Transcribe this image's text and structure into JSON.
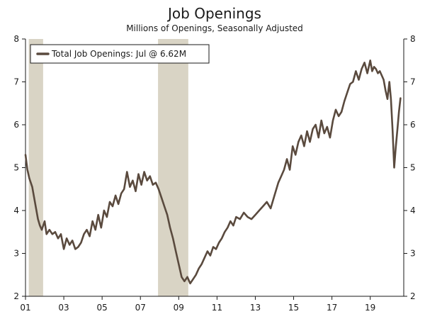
{
  "chart_data": {
    "type": "line",
    "title": "Job Openings",
    "subtitle": "Millions of Openings, Seasonally Adjusted",
    "xlabel": "",
    "ylabel": "",
    "xlim": [
      2001.0,
      2020.75
    ],
    "ylim": [
      2,
      8
    ],
    "y_ticks": [
      2,
      3,
      4,
      5,
      6,
      7,
      8
    ],
    "x_ticks": [
      {
        "year": 2001,
        "label": "01"
      },
      {
        "year": 2003,
        "label": "03"
      },
      {
        "year": 2005,
        "label": "05"
      },
      {
        "year": 2007,
        "label": "07"
      },
      {
        "year": 2009,
        "label": "09"
      },
      {
        "year": 2011,
        "label": "11"
      },
      {
        "year": 2013,
        "label": "13"
      },
      {
        "year": 2015,
        "label": "15"
      },
      {
        "year": 2017,
        "label": "17"
      },
      {
        "year": 2019,
        "label": "19"
      }
    ],
    "grid": false,
    "legend": {
      "position": "top-left",
      "label": "Total Job Openings: Jul @ 6.62M"
    },
    "recessions": [
      {
        "start": 2001.17,
        "end": 2001.92
      },
      {
        "start": 2007.92,
        "end": 2009.5
      }
    ],
    "series": [
      {
        "name": "Total Job Openings: Jul @ 6.62M",
        "x": [
          2001.0,
          2001.1,
          2001.2,
          2001.35,
          2001.45,
          2001.55,
          2001.65,
          2001.75,
          2001.85,
          2002.0,
          2002.1,
          2002.25,
          2002.4,
          2002.55,
          2002.7,
          2002.85,
          2003.0,
          2003.15,
          2003.3,
          2003.45,
          2003.6,
          2003.75,
          2003.9,
          2004.05,
          2004.2,
          2004.35,
          2004.5,
          2004.65,
          2004.8,
          2004.95,
          2005.1,
          2005.25,
          2005.4,
          2005.55,
          2005.7,
          2005.85,
          2006.0,
          2006.15,
          2006.3,
          2006.45,
          2006.6,
          2006.75,
          2006.9,
          2007.05,
          2007.2,
          2007.35,
          2007.5,
          2007.65,
          2007.8,
          2007.95,
          2008.1,
          2008.25,
          2008.4,
          2008.55,
          2008.7,
          2008.85,
          2009.0,
          2009.15,
          2009.3,
          2009.45,
          2009.6,
          2009.75,
          2009.9,
          2010.05,
          2010.2,
          2010.35,
          2010.5,
          2010.65,
          2010.8,
          2010.95,
          2011.1,
          2011.25,
          2011.4,
          2011.55,
          2011.7,
          2011.85,
          2012.0,
          2012.2,
          2012.4,
          2012.6,
          2012.8,
          2013.0,
          2013.2,
          2013.4,
          2013.6,
          2013.8,
          2014.0,
          2014.2,
          2014.35,
          2014.5,
          2014.65,
          2014.8,
          2014.95,
          2015.1,
          2015.25,
          2015.4,
          2015.55,
          2015.7,
          2015.85,
          2016.0,
          2016.15,
          2016.3,
          2016.45,
          2016.6,
          2016.75,
          2016.9,
          2017.05,
          2017.2,
          2017.35,
          2017.5,
          2017.65,
          2017.8,
          2017.95,
          2018.1,
          2018.25,
          2018.4,
          2018.55,
          2018.7,
          2018.85,
          2019.0,
          2019.1,
          2019.2,
          2019.3,
          2019.4,
          2019.5,
          2019.6,
          2019.7,
          2019.8,
          2019.9,
          2020.0,
          2020.08,
          2020.17,
          2020.25,
          2020.33,
          2020.42,
          2020.5,
          2020.58
        ],
        "values": [
          5.3,
          4.95,
          4.75,
          4.55,
          4.3,
          4.05,
          3.8,
          3.65,
          3.55,
          3.75,
          3.45,
          3.55,
          3.45,
          3.5,
          3.35,
          3.45,
          3.1,
          3.35,
          3.2,
          3.3,
          3.1,
          3.15,
          3.25,
          3.45,
          3.55,
          3.4,
          3.75,
          3.55,
          3.9,
          3.6,
          4.0,
          3.85,
          4.2,
          4.1,
          4.35,
          4.15,
          4.4,
          4.5,
          4.9,
          4.55,
          4.7,
          4.45,
          4.85,
          4.6,
          4.9,
          4.7,
          4.8,
          4.6,
          4.65,
          4.5,
          4.3,
          4.1,
          3.9,
          3.6,
          3.35,
          3.05,
          2.75,
          2.45,
          2.35,
          2.45,
          2.3,
          2.4,
          2.5,
          2.65,
          2.75,
          2.9,
          3.05,
          2.95,
          3.15,
          3.1,
          3.25,
          3.35,
          3.5,
          3.6,
          3.75,
          3.65,
          3.85,
          3.8,
          3.95,
          3.85,
          3.8,
          3.9,
          4.0,
          4.1,
          4.2,
          4.05,
          4.35,
          4.65,
          4.8,
          4.95,
          5.2,
          4.95,
          5.5,
          5.3,
          5.6,
          5.75,
          5.5,
          5.85,
          5.6,
          5.9,
          6.0,
          5.7,
          6.1,
          5.8,
          5.95,
          5.7,
          6.1,
          6.35,
          6.2,
          6.3,
          6.55,
          6.75,
          6.95,
          7.0,
          7.25,
          7.05,
          7.3,
          7.45,
          7.2,
          7.5,
          7.25,
          7.35,
          7.3,
          7.2,
          7.25,
          7.15,
          7.05,
          6.8,
          6.6,
          7.0,
          6.6,
          5.85,
          5.0,
          5.45,
          5.9,
          6.3,
          6.62
        ]
      }
    ],
    "colors": {
      "line": "#5a4a3e",
      "recession": "#d9d4c5",
      "axis": "#1a1a1a",
      "legend_border": "#1a1a1a"
    }
  }
}
